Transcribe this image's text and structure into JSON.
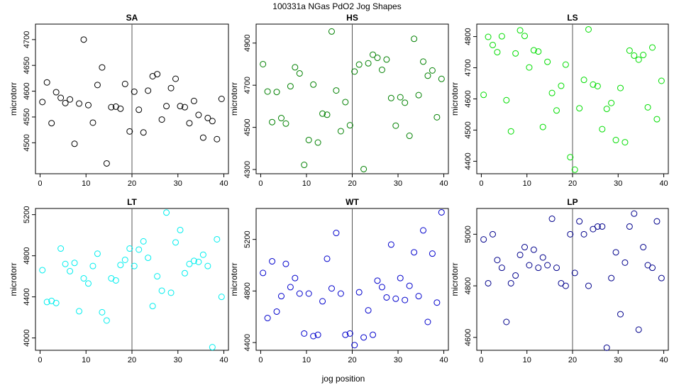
{
  "figure": {
    "title": "100331a   NGas PdO2 Jog Shapes",
    "xlabel": "jog position"
  },
  "chart_data": [
    {
      "type": "scatter",
      "title": "SA",
      "ylabel": "microtorr",
      "color": "#000000",
      "xlim": [
        -1,
        41
      ],
      "ylim": [
        4440,
        4730
      ],
      "xticks": [
        0,
        10,
        20,
        30,
        40
      ],
      "yticks": [
        4500,
        4550,
        4600,
        4650,
        4700
      ],
      "vline": 20,
      "x": [
        0.5,
        1.5,
        2.5,
        3.5,
        4.5,
        5.5,
        6.5,
        7.5,
        8.5,
        9.5,
        10.5,
        11.5,
        12.5,
        13.5,
        14.5,
        15.5,
        16.5,
        17.5,
        18.5,
        19.5,
        20.5,
        21.5,
        22.5,
        23.5,
        24.5,
        25.5,
        26.5,
        27.5,
        28.5,
        29.5,
        30.5,
        31.5,
        32.5,
        33.5,
        34.5,
        35.5,
        36.5,
        37.5,
        38.5,
        39.5
      ],
      "y": [
        4579,
        4617,
        4538,
        4598,
        4587,
        4577,
        4584,
        4498,
        4576,
        4700,
        4573,
        4539,
        4612,
        4646,
        4460,
        4569,
        4570,
        4566,
        4614,
        4522,
        4599,
        4564,
        4520,
        4601,
        4629,
        4633,
        4545,
        4571,
        4606,
        4624,
        4571,
        4569,
        4538,
        4581,
        4554,
        4510,
        4548,
        4542,
        4507,
        4585
      ]
    },
    {
      "type": "scatter",
      "title": "HS",
      "ylabel": "microtorr",
      "color": "#008000",
      "xlim": [
        -1,
        41
      ],
      "ylim": [
        4280,
        4990
      ],
      "xticks": [
        0,
        10,
        20,
        30,
        40
      ],
      "yticks": [
        4300,
        4500,
        4700,
        4900
      ],
      "vline": 20,
      "x": [
        0.5,
        1.5,
        2.5,
        3.5,
        4.5,
        5.5,
        6.5,
        7.5,
        8.5,
        9.5,
        10.5,
        11.5,
        12.5,
        13.5,
        14.5,
        15.5,
        16.5,
        17.5,
        18.5,
        19.5,
        20.5,
        21.5,
        22.5,
        23.5,
        24.5,
        25.5,
        26.5,
        27.5,
        28.5,
        29.5,
        30.5,
        31.5,
        32.5,
        33.5,
        34.5,
        35.5,
        36.5,
        37.5,
        38.5,
        39.5
      ],
      "y": [
        4800,
        4670,
        4525,
        4668,
        4544,
        4518,
        4695,
        4785,
        4756,
        4322,
        4440,
        4703,
        4428,
        4565,
        4560,
        4955,
        4675,
        4482,
        4620,
        4510,
        4765,
        4798,
        4302,
        4804,
        4845,
        4830,
        4773,
        4822,
        4639,
        4508,
        4643,
        4617,
        4460,
        4920,
        4653,
        4812,
        4745,
        4770,
        4548,
        4730
      ]
    },
    {
      "type": "scatter",
      "title": "LS",
      "ylabel": "microtorr",
      "color": "#00dd00",
      "xlim": [
        -1,
        41
      ],
      "ylim": [
        4360,
        4840
      ],
      "xticks": [
        0,
        10,
        20,
        30,
        40
      ],
      "yticks": [
        4400,
        4500,
        4600,
        4700,
        4800
      ],
      "vline": 20,
      "x": [
        0.5,
        1.5,
        2.5,
        3.5,
        4.5,
        5.5,
        6.5,
        7.5,
        8.5,
        9.5,
        10.5,
        11.5,
        12.5,
        13.5,
        14.5,
        15.5,
        16.5,
        17.5,
        18.5,
        19.5,
        20.5,
        21.5,
        22.5,
        23.5,
        24.5,
        25.5,
        26.5,
        27.5,
        28.5,
        29.5,
        30.5,
        31.5,
        32.5,
        33.5,
        34.5,
        35.5,
        36.5,
        37.5,
        38.5,
        39.5
      ],
      "y": [
        4613,
        4799,
        4773,
        4750,
        4801,
        4596,
        4496,
        4746,
        4820,
        4802,
        4701,
        4756,
        4752,
        4510,
        4719,
        4619,
        4563,
        4642,
        4710,
        4413,
        4373,
        4570,
        4661,
        4823,
        4646,
        4641,
        4503,
        4568,
        4587,
        4468,
        4635,
        4461,
        4755,
        4739,
        4726,
        4741,
        4573,
        4765,
        4535,
        4658
      ]
    },
    {
      "type": "scatter",
      "title": "LT",
      "ylabel": "microtorr",
      "color": "#00eeee",
      "xlim": [
        -1,
        41
      ],
      "ylim": [
        3880,
        5260
      ],
      "xticks": [
        0,
        10,
        20,
        30,
        40
      ],
      "yticks": [
        4000,
        4400,
        4800,
        5200
      ],
      "vline": 20,
      "x": [
        0.5,
        1.5,
        2.5,
        3.5,
        4.5,
        5.5,
        6.5,
        7.5,
        8.5,
        9.5,
        10.5,
        11.5,
        12.5,
        13.5,
        14.5,
        15.5,
        16.5,
        17.5,
        18.5,
        19.5,
        20.5,
        21.5,
        22.5,
        23.5,
        24.5,
        25.5,
        26.5,
        27.5,
        28.5,
        29.5,
        30.5,
        31.5,
        32.5,
        33.5,
        34.5,
        35.5,
        36.5,
        37.5,
        38.5,
        39.5
      ],
      "y": [
        4660,
        4350,
        4360,
        4340,
        4870,
        4720,
        4650,
        4730,
        4260,
        4580,
        4530,
        4700,
        4820,
        4250,
        4170,
        4580,
        4560,
        4710,
        4760,
        4870,
        4700,
        4860,
        4940,
        4780,
        4310,
        4600,
        4460,
        5220,
        4440,
        4930,
        5050,
        4630,
        4720,
        4750,
        4740,
        4810,
        4700,
        3910,
        4960,
        4400
      ]
    },
    {
      "type": "scatter",
      "title": "WT",
      "ylabel": "microtorr",
      "color": "#0000cc",
      "xlim": [
        -1,
        41
      ],
      "ylim": [
        4340,
        5440
      ],
      "xticks": [
        0,
        10,
        20,
        30,
        40
      ],
      "yticks": [
        4400,
        4800,
        5200
      ],
      "vline": 20,
      "x": [
        0.5,
        1.5,
        2.5,
        3.5,
        4.5,
        5.5,
        6.5,
        7.5,
        8.5,
        9.5,
        10.5,
        11.5,
        12.5,
        13.5,
        14.5,
        15.5,
        16.5,
        17.5,
        18.5,
        19.5,
        20.5,
        21.5,
        22.5,
        23.5,
        24.5,
        25.5,
        26.5,
        27.5,
        28.5,
        29.5,
        30.5,
        31.5,
        32.5,
        33.5,
        34.5,
        35.5,
        36.5,
        37.5,
        38.5,
        39.5
      ],
      "y": [
        4940,
        4590,
        5030,
        4640,
        4760,
        5010,
        4830,
        4900,
        4780,
        4470,
        4780,
        4450,
        4460,
        4720,
        5050,
        4820,
        5250,
        4780,
        4460,
        4470,
        4380,
        4790,
        4440,
        4650,
        4460,
        4880,
        4830,
        4750,
        5160,
        4740,
        4900,
        4730,
        4840,
        5100,
        4760,
        5270,
        4560,
        5090,
        4710,
        5410
      ]
    },
    {
      "type": "scatter",
      "title": "LP",
      "ylabel": "microtorr",
      "color": "#00008b",
      "xlim": [
        -1,
        41
      ],
      "ylim": [
        4550,
        5100
      ],
      "xticks": [
        0,
        10,
        20,
        30,
        40
      ],
      "yticks": [
        4600,
        4800,
        5000
      ],
      "vline": 20,
      "x": [
        0.5,
        1.5,
        2.5,
        3.5,
        4.5,
        5.5,
        6.5,
        7.5,
        8.5,
        9.5,
        10.5,
        11.5,
        12.5,
        13.5,
        14.5,
        15.5,
        16.5,
        17.5,
        18.5,
        19.5,
        20.5,
        21.5,
        22.5,
        23.5,
        24.5,
        25.5,
        26.5,
        27.5,
        28.5,
        29.5,
        30.5,
        31.5,
        32.5,
        33.5,
        34.5,
        35.5,
        36.5,
        37.5,
        38.5,
        39.5
      ],
      "y": [
        4980,
        4810,
        5000,
        4900,
        4870,
        4660,
        4810,
        4840,
        4920,
        4950,
        4880,
        4940,
        4870,
        4910,
        4880,
        5060,
        4870,
        4810,
        4800,
        5000,
        4850,
        5050,
        5000,
        4800,
        5020,
        5030,
        5030,
        4560,
        4830,
        4930,
        4690,
        4890,
        5030,
        5080,
        4630,
        4950,
        4880,
        4870,
        5050,
        4830
      ]
    }
  ]
}
